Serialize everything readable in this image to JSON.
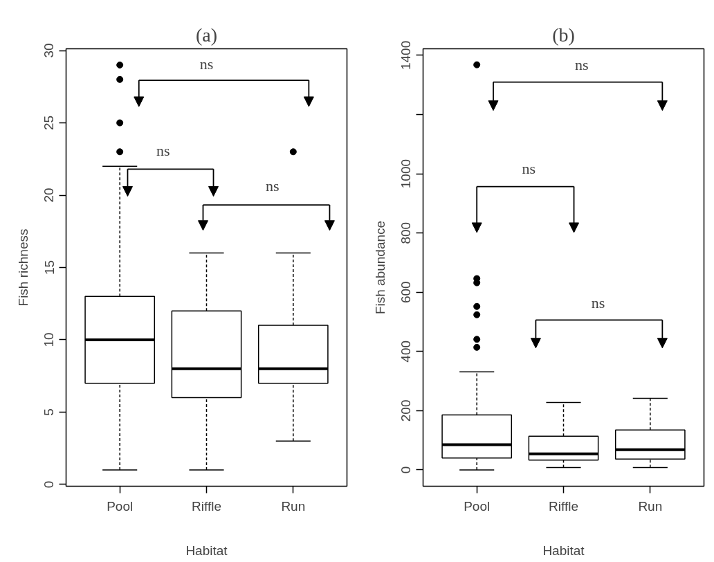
{
  "chart_data": [
    {
      "type": "box",
      "title": "(a)",
      "xlabel": "Habitat",
      "ylabel": "Fish richness",
      "categories": [
        "Pool",
        "Riffle",
        "Run"
      ],
      "boxes": [
        {
          "low": 1,
          "q1": 7,
          "median": 10,
          "q3": 13,
          "high": 22,
          "outliers": [
            23,
            25,
            28,
            29
          ]
        },
        {
          "low": 1,
          "q1": 6,
          "median": 8,
          "q3": 12,
          "high": 16
        },
        {
          "low": 3,
          "q1": 7,
          "median": 8,
          "q3": 11,
          "high": 16,
          "outliers": [
            23
          ]
        }
      ],
      "ylim": [
        -0.12,
        30.12
      ],
      "yticks": [
        0,
        5,
        10,
        15,
        20,
        25,
        30
      ],
      "grid": false,
      "annotations": [
        "ns",
        "ns",
        "ns"
      ]
    },
    {
      "type": "box",
      "title": "(b)",
      "xlabel": "Habitat",
      "ylabel": "Fish abundance",
      "categories": [
        "Pool",
        "Riffle",
        "Run"
      ],
      "boxes": [
        {
          "low": 0,
          "q1": 40,
          "median": 85,
          "q3": 186,
          "high": 331,
          "outliers": [
            414,
            441,
            524,
            552,
            632,
            646,
            1368
          ]
        },
        {
          "low": 8,
          "q1": 33,
          "median": 54,
          "q3": 114,
          "high": 228
        },
        {
          "low": 8,
          "q1": 37,
          "median": 68,
          "q3": 135,
          "high": 242
        }
      ],
      "ylim": [
        -55,
        1422
      ],
      "yticks": [
        0,
        200,
        400,
        600,
        800,
        1000,
        {
          "value": 1200,
          "label": null
        },
        1400
      ],
      "grid": false,
      "annotations": [
        "ns",
        "ns",
        "ns"
      ]
    }
  ]
}
